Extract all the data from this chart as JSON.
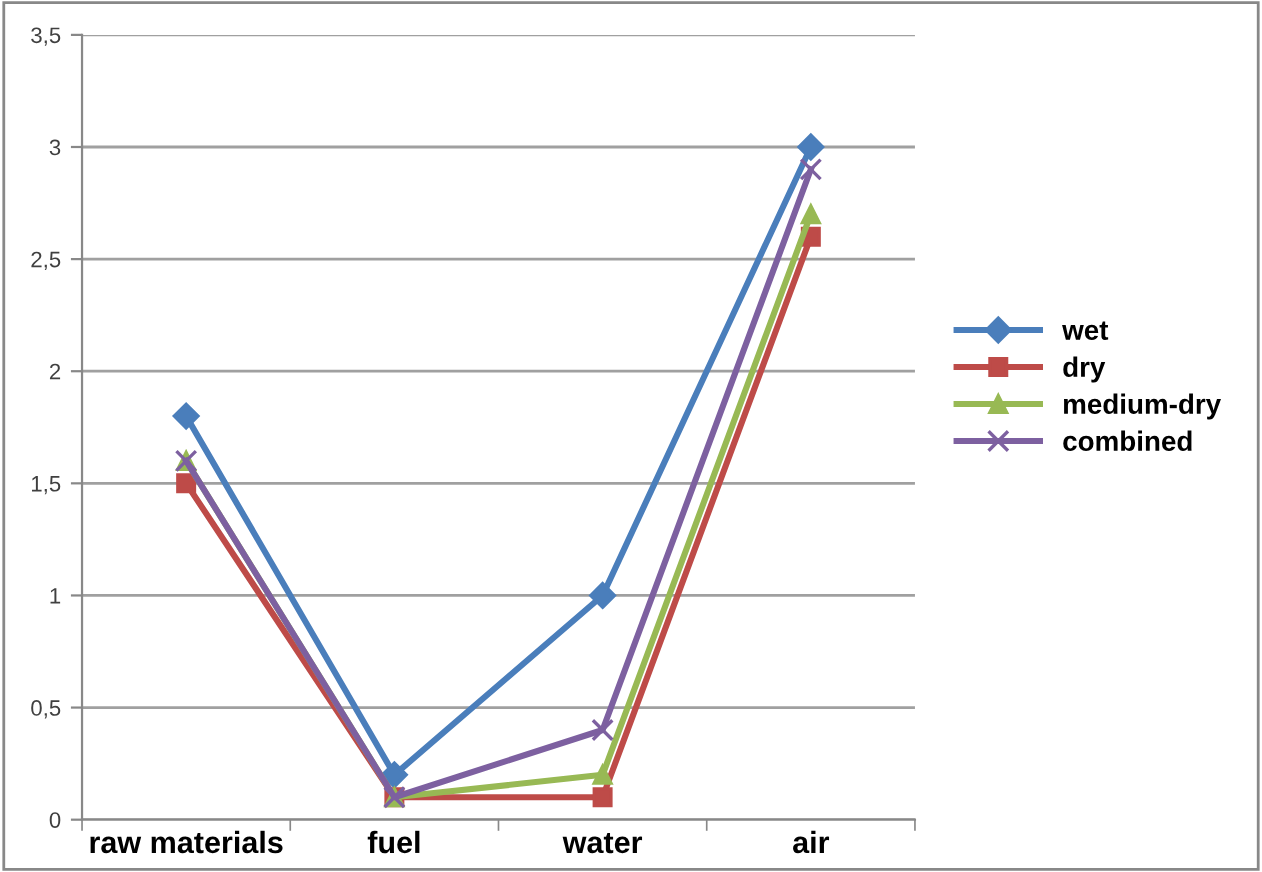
{
  "chart_data": {
    "type": "line",
    "categories": [
      "raw materials",
      "fuel",
      "water",
      "air"
    ],
    "series": [
      {
        "name": "wet",
        "color": "#4a7ebb",
        "marker": "diamond",
        "values": [
          1.8,
          0.2,
          1.0,
          3.0
        ]
      },
      {
        "name": "dry",
        "color": "#be4b48",
        "marker": "square",
        "values": [
          1.5,
          0.1,
          0.1,
          2.6
        ]
      },
      {
        "name": "medium-dry",
        "color": "#98b954",
        "marker": "triangle",
        "values": [
          1.6,
          0.1,
          0.2,
          2.7
        ]
      },
      {
        "name": "combined",
        "color": "#7d60a0",
        "marker": "cross",
        "values": [
          1.6,
          0.1,
          0.4,
          2.9
        ]
      }
    ],
    "ylim": [
      0,
      3.5
    ],
    "yticks": [
      0,
      {
        "value": 0.5,
        "label": "0,5"
      },
      1,
      {
        "value": 1.5,
        "label": "1,5"
      },
      2,
      {
        "value": 2.5,
        "label": "2,5"
      },
      3,
      {
        "value": 3.5,
        "label": "3,5"
      }
    ],
    "grid": "y",
    "legend": "right"
  }
}
